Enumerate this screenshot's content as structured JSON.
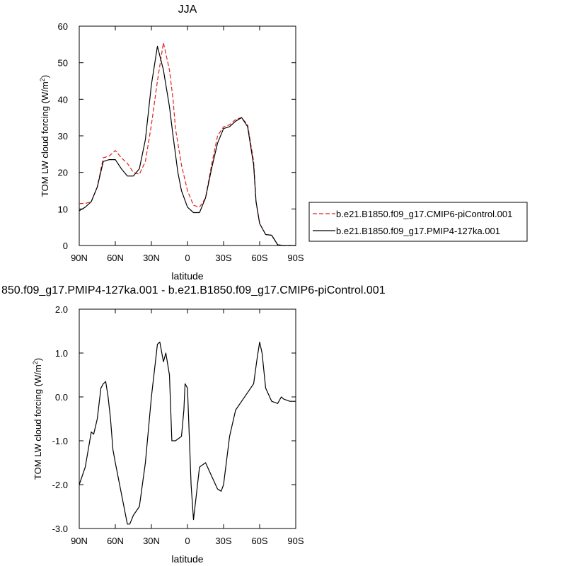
{
  "chart_data": [
    {
      "type": "line",
      "title": "JJA",
      "xlabel": "latitude",
      "ylabel": "TOM LW cloud forcing (W/m²)",
      "ylabel_main": "TOM LW cloud forcing (W/m",
      "ylabel_sup": "2",
      "ylabel_end": ")",
      "xlim": [
        90,
        -90
      ],
      "ylim": [
        0,
        60
      ],
      "xticks": [
        {
          "value": 90,
          "label": "90N"
        },
        {
          "value": 60,
          "label": "60N"
        },
        {
          "value": 30,
          "label": "30N"
        },
        {
          "value": 0,
          "label": "0"
        },
        {
          "value": -30,
          "label": "30S"
        },
        {
          "value": -60,
          "label": "60S"
        },
        {
          "value": -90,
          "label": "90S"
        }
      ],
      "yticks": [
        {
          "value": 0,
          "label": "0"
        },
        {
          "value": 10,
          "label": "10"
        },
        {
          "value": 20,
          "label": "20"
        },
        {
          "value": 30,
          "label": "30"
        },
        {
          "value": 40,
          "label": "40"
        },
        {
          "value": 50,
          "label": "50"
        },
        {
          "value": 60,
          "label": "60"
        }
      ],
      "legend": {
        "placement": "right"
      },
      "series": [
        {
          "name": "b.e21.B1850.f09_g17.CMIP6-piControl.001",
          "color": "#e02020",
          "dash": "dashed",
          "x": [
            90,
            85,
            80,
            75,
            70,
            65,
            60,
            55,
            50,
            45,
            40,
            35,
            30,
            25,
            20,
            15,
            12,
            10,
            8,
            5,
            0,
            -5,
            -10,
            -15,
            -20,
            -25,
            -30,
            -35,
            -40,
            -45,
            -50,
            -55,
            -57,
            -60,
            -65,
            -70,
            -75,
            -80,
            -85,
            -88,
            -90
          ],
          "y": [
            11.5,
            11.5,
            12,
            16,
            24,
            24.5,
            26,
            24,
            22.5,
            20,
            19.5,
            23,
            33,
            45,
            55.5,
            48,
            40,
            32,
            28,
            22,
            15,
            11,
            10.5,
            13,
            22,
            30,
            32.5,
            33,
            34.5,
            35,
            33,
            23,
            12,
            6,
            3,
            2.8,
            0.2,
            0,
            0,
            0,
            0
          ]
        },
        {
          "name": "b.e21.B1850.f09_g17.PMIP4-127ka.001",
          "color": "#000000",
          "dash": "solid",
          "x": [
            90,
            85,
            80,
            75,
            70,
            65,
            60,
            55,
            50,
            45,
            40,
            35,
            30,
            25,
            20,
            15,
            12,
            10,
            8,
            5,
            0,
            -5,
            -10,
            -15,
            -20,
            -25,
            -30,
            -35,
            -40,
            -45,
            -50,
            -55,
            -57,
            -60,
            -65,
            -70,
            -75,
            -80,
            -85,
            -88,
            -90
          ],
          "y": [
            9.5,
            10.5,
            12,
            16,
            23,
            23.5,
            23.5,
            21,
            19,
            19,
            21,
            29,
            44,
            54.5,
            48,
            38,
            30,
            25,
            20,
            15,
            10.5,
            9,
            9,
            13,
            21,
            28,
            32,
            32.5,
            34,
            35,
            32.5,
            22,
            12,
            6,
            3,
            2.8,
            0.2,
            0,
            0,
            0,
            0
          ]
        }
      ]
    },
    {
      "type": "line",
      "title": "850.f09_g17.PMIP4-127ka.001 - b.e21.B1850.f09_g17.CMIP6-piControl.001",
      "xlabel": "latitude",
      "ylabel": "TOM LW cloud forcing (W/m²)",
      "ylabel_main": "TOM LW cloud forcing (W/m",
      "ylabel_sup": "2",
      "ylabel_end": ")",
      "xlim": [
        90,
        -90
      ],
      "ylim": [
        -3.0,
        2.0
      ],
      "xticks": [
        {
          "value": 90,
          "label": "90N"
        },
        {
          "value": 60,
          "label": "60N"
        },
        {
          "value": 30,
          "label": "30N"
        },
        {
          "value": 0,
          "label": "0"
        },
        {
          "value": -30,
          "label": "30S"
        },
        {
          "value": -60,
          "label": "60S"
        },
        {
          "value": -90,
          "label": "90S"
        }
      ],
      "yticks": [
        {
          "value": -3.0,
          "label": "-3.0"
        },
        {
          "value": -2.0,
          "label": "-2.0"
        },
        {
          "value": -1.0,
          "label": "-1.0"
        },
        {
          "value": 0.0,
          "label": "0.0"
        },
        {
          "value": 1.0,
          "label": "1.0"
        },
        {
          "value": 2.0,
          "label": "2.0"
        }
      ],
      "series": [
        {
          "color": "#000000",
          "dash": "solid",
          "x": [
            90,
            85,
            80,
            78,
            75,
            72,
            70,
            68,
            66,
            64,
            62,
            60,
            55,
            50,
            48,
            45,
            40,
            35,
            30,
            25,
            23,
            20,
            18,
            15,
            13,
            10,
            5,
            3,
            2,
            0,
            -3,
            -5,
            -10,
            -15,
            -20,
            -25,
            -28,
            -30,
            -35,
            -40,
            -45,
            -50,
            -55,
            -58,
            -60,
            -62,
            -65,
            -70,
            -75,
            -78,
            -80,
            -85,
            -90
          ],
          "y": [
            -2.0,
            -1.6,
            -0.8,
            -0.85,
            -0.5,
            0.2,
            0.3,
            0.35,
            0.0,
            -0.5,
            -1.2,
            -1.5,
            -2.2,
            -2.9,
            -2.9,
            -2.7,
            -2.5,
            -1.5,
            0.0,
            1.2,
            1.25,
            0.8,
            1.0,
            0.5,
            -1.0,
            -1.0,
            -0.9,
            -0.3,
            0.3,
            0.2,
            -2.0,
            -2.8,
            -1.6,
            -1.5,
            -1.8,
            -2.1,
            -2.15,
            -2.0,
            -0.9,
            -0.3,
            -0.1,
            0.1,
            0.3,
            0.9,
            1.25,
            1.0,
            0.2,
            -0.1,
            -0.15,
            0.0,
            -0.05,
            -0.1,
            -0.1
          ]
        }
      ]
    }
  ],
  "colors": {
    "axis": "#000000",
    "background": "#ffffff"
  }
}
